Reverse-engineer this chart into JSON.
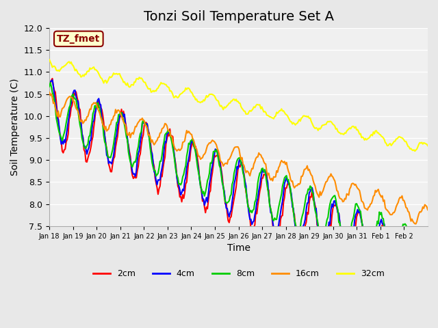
{
  "title": "Tonzi Soil Temperature Set A",
  "xlabel": "Time",
  "ylabel": "Soil Temperature (C)",
  "ylim": [
    7.5,
    12.0
  ],
  "annotation": "TZ_fmet",
  "annotation_color": "#8B0000",
  "annotation_bg": "#FFFFCC",
  "background_color": "#E8E8E8",
  "plot_bg": "#F0F0F0",
  "grid_color": "#FFFFFF",
  "series": {
    "2cm": {
      "color": "#FF0000",
      "linewidth": 1.5
    },
    "4cm": {
      "color": "#0000FF",
      "linewidth": 1.5
    },
    "8cm": {
      "color": "#00CC00",
      "linewidth": 1.5
    },
    "16cm": {
      "color": "#FF8C00",
      "linewidth": 1.5
    },
    "32cm": {
      "color": "#FFFF00",
      "linewidth": 1.5
    }
  },
  "xtick_labels": [
    "Jan 18",
    "Jan 19",
    "Jan 20",
    "Jan 21",
    "Jan 22",
    "Jan 23",
    "Jan 24",
    "Jan 25",
    "Jan 26",
    "Jan 27",
    "Jan 28",
    "Jan 29",
    "Jan 30",
    "Jan 31",
    "Feb 1",
    "Feb 2"
  ],
  "ytick_labels": [
    "7.5",
    "8.0",
    "8.5",
    "9.0",
    "9.5",
    "10.0",
    "10.5",
    "11.0",
    "11.5",
    "12.0"
  ],
  "title_fontsize": 14,
  "label_fontsize": 10
}
